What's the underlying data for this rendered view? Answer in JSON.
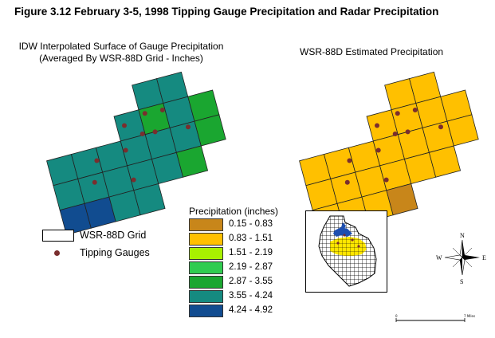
{
  "figure_title": "Figure 3.12  February 3-5, 1998 Tipping Gauge Precipitation and Radar Precipitation",
  "left_map": {
    "title_line1": "IDW Interpolated Surface of Gauge Precipitation",
    "title_line2": "(Averaged By WSR-88D Grid - Inches)"
  },
  "right_map": {
    "title": "WSR-88D Estimated Precipitation"
  },
  "legend": {
    "title": "Precipitation (inches)",
    "classes": [
      {
        "label": "0.15 - 0.83",
        "color": "#c8861a"
      },
      {
        "label": "0.83 - 1.51",
        "color": "#ffc000"
      },
      {
        "label": "1.51 - 2.19",
        "color": "#a8f000"
      },
      {
        "label": "2.19 - 2.87",
        "color": "#30cc50"
      },
      {
        "label": "2.87 - 3.55",
        "color": "#1aa630"
      },
      {
        "label": "3.55 - 4.24",
        "color": "#158a80"
      },
      {
        "label": "4.24 - 4.92",
        "color": "#114c90"
      }
    ]
  },
  "symbols": {
    "grid_label": "WSR-88D Grid",
    "gauges_label": "Tipping Gauges",
    "gauge_color": "#7a2e2e"
  },
  "north_arrow": {
    "n": "N",
    "s": "S",
    "e": "E",
    "w": "W"
  },
  "scale_bar": {
    "left_label": "0",
    "right_label": "7 Miles"
  }
}
